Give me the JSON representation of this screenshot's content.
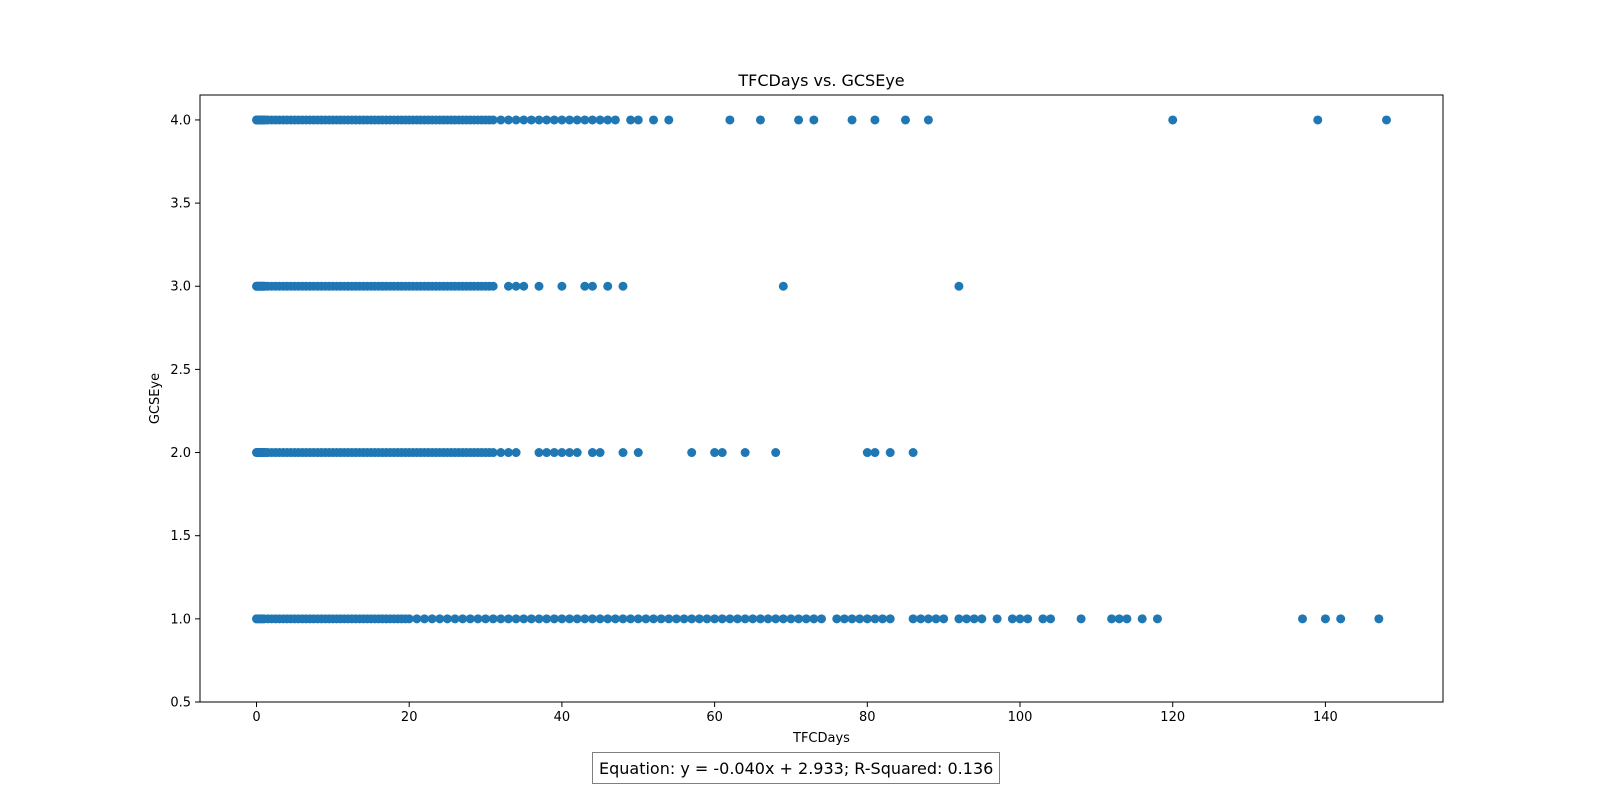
{
  "chart_data": {
    "type": "scatter",
    "title": "TFCDays vs. GCSEye",
    "xlabel": "TFCDays",
    "ylabel": "GCSEye",
    "xlim": [
      -7.4,
      155.4
    ],
    "ylim": [
      0.5,
      4.15
    ],
    "xticks": [
      0,
      20,
      40,
      60,
      80,
      100,
      120,
      140
    ],
    "yticks": [
      0.5,
      1.0,
      1.5,
      2.0,
      2.5,
      3.0,
      3.5,
      4.0
    ],
    "grid": false,
    "marker_color": "#1f77b4",
    "series": [
      {
        "y": 4.0,
        "x": [
          0,
          0.1,
          0.2,
          0.3,
          0.4,
          0.5,
          0.6,
          0.7,
          0.8,
          0.9,
          1,
          1.2,
          1.5,
          2,
          2.5,
          3,
          3.5,
          4,
          4.5,
          5,
          5.5,
          6,
          6.5,
          7,
          7.5,
          8,
          8.5,
          9,
          9.5,
          10,
          10.5,
          11,
          11.5,
          12,
          12.5,
          13,
          13.5,
          14,
          14.5,
          15,
          15.5,
          16,
          16.5,
          17,
          17.5,
          18,
          18.5,
          19,
          19.5,
          20,
          20.5,
          21,
          21.5,
          22,
          22.5,
          23,
          23.5,
          24,
          24.5,
          25,
          25.5,
          26,
          26.5,
          27,
          27.5,
          28,
          28.5,
          29,
          29.5,
          30,
          30.5,
          31,
          32,
          33,
          34,
          35,
          36,
          37,
          38,
          39,
          40,
          41,
          42,
          43,
          44,
          45,
          46,
          47,
          49,
          50,
          52,
          54,
          62,
          66,
          71,
          73,
          78,
          81,
          85,
          88,
          120,
          139,
          148
        ]
      },
      {
        "y": 3.0,
        "x": [
          0,
          0.1,
          0.2,
          0.3,
          0.4,
          0.5,
          0.6,
          0.7,
          0.8,
          0.9,
          1,
          1.2,
          1.5,
          2,
          2.5,
          3,
          3.5,
          4,
          4.5,
          5,
          5.5,
          6,
          6.5,
          7,
          7.5,
          8,
          8.5,
          9,
          9.5,
          10,
          10.5,
          11,
          11.5,
          12,
          12.5,
          13,
          13.5,
          14,
          14.5,
          15,
          15.5,
          16,
          16.5,
          17,
          17.5,
          18,
          18.5,
          19,
          19.5,
          20,
          20.5,
          21,
          21.5,
          22,
          22.5,
          23,
          23.5,
          24,
          24.5,
          25,
          25.5,
          26,
          26.5,
          27,
          27.5,
          28,
          28.5,
          29,
          29.5,
          30,
          30.5,
          31,
          33,
          34,
          35,
          37,
          40,
          43,
          44,
          46,
          48,
          69,
          92
        ]
      },
      {
        "y": 2.0,
        "x": [
          0,
          0.1,
          0.2,
          0.3,
          0.4,
          0.5,
          0.6,
          0.7,
          0.8,
          0.9,
          1,
          1.2,
          1.5,
          2,
          2.5,
          3,
          3.5,
          4,
          4.5,
          5,
          5.5,
          6,
          6.5,
          7,
          7.5,
          8,
          8.5,
          9,
          9.5,
          10,
          10.5,
          11,
          11.5,
          12,
          12.5,
          13,
          13.5,
          14,
          14.5,
          15,
          15.5,
          16,
          16.5,
          17,
          17.5,
          18,
          18.5,
          19,
          19.5,
          20,
          20.5,
          21,
          21.5,
          22,
          22.5,
          23,
          23.5,
          24,
          24.5,
          25,
          25.5,
          26,
          26.5,
          27,
          27.5,
          28,
          28.5,
          29,
          29.5,
          30,
          30.5,
          31,
          32,
          33,
          34,
          37,
          38,
          39,
          40,
          41,
          42,
          44,
          45,
          48,
          50,
          57,
          60,
          61,
          64,
          68,
          80,
          81,
          83,
          86
        ]
      },
      {
        "y": 1.0,
        "x": [
          0,
          0.2,
          0.4,
          0.6,
          0.8,
          1,
          1.5,
          2,
          2.5,
          3,
          3.5,
          4,
          4.5,
          5,
          5.5,
          6,
          6.5,
          7,
          7.5,
          8,
          8.5,
          9,
          9.5,
          10,
          10.5,
          11,
          11.5,
          12,
          12.5,
          13,
          13.5,
          14,
          14.5,
          15,
          15.5,
          16,
          16.5,
          17,
          17.5,
          18,
          18.5,
          19,
          19.5,
          20,
          21,
          22,
          23,
          24,
          25,
          26,
          27,
          28,
          29,
          30,
          31,
          32,
          33,
          34,
          35,
          36,
          37,
          38,
          39,
          40,
          41,
          42,
          43,
          44,
          45,
          46,
          47,
          48,
          49,
          50,
          51,
          52,
          53,
          54,
          55,
          56,
          57,
          58,
          59,
          60,
          61,
          62,
          63,
          64,
          65,
          66,
          67,
          68,
          69,
          70,
          71,
          72,
          73,
          74,
          76,
          77,
          78,
          79,
          80,
          81,
          82,
          83,
          86,
          87,
          88,
          89,
          90,
          92,
          93,
          94,
          95,
          97,
          99,
          100,
          101,
          103,
          104,
          108,
          112,
          113,
          114,
          116,
          118,
          137,
          140,
          142,
          147
        ]
      }
    ]
  },
  "equation_text": "Equation: y = -0.040x + 2.933; R-Squared: 0.136"
}
